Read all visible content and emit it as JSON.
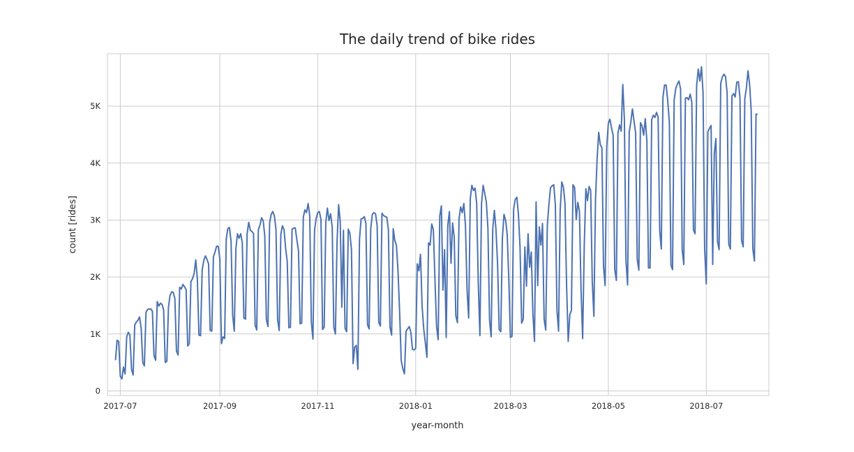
{
  "chart_data": {
    "type": "line",
    "title": "The daily trend of bike rides",
    "xlabel": "year-month",
    "ylabel": "count [rides]",
    "x_tick_labels": [
      "2017-07",
      "2017-09",
      "2017-11",
      "2018-01",
      "2018-03",
      "2018-05",
      "2018-07"
    ],
    "x_tick_dates": [
      "2017-07-01",
      "2017-09-01",
      "2017-11-01",
      "2018-01-01",
      "2018-03-01",
      "2018-05-01",
      "2018-07-01"
    ],
    "y_tick_labels": [
      "0",
      "1K",
      "2K",
      "3K",
      "4K",
      "5K"
    ],
    "y_tick_values": [
      0,
      1000,
      2000,
      3000,
      4000,
      5000
    ],
    "xlim": [
      "2017-06-23",
      "2018-08-09"
    ],
    "ylim": [
      -80,
      5920
    ],
    "grid": true,
    "color": "#4c72b0",
    "series": [
      {
        "start_date": "2017-06-28",
        "values": [
          540,
          890,
          870,
          260,
          210,
          420,
          300,
          950,
          1030,
          980,
          380,
          280,
          1160,
          1210,
          1240,
          1300,
          1100,
          500,
          440,
          1380,
          1430,
          1440,
          1440,
          1400,
          620,
          540,
          1570,
          1490,
          1540,
          1520,
          1420,
          500,
          520,
          1470,
          1680,
          1740,
          1730,
          1620,
          700,
          630,
          1820,
          1790,
          1870,
          1830,
          1780,
          790,
          830,
          1920,
          1970,
          2060,
          2300,
          1970,
          980,
          970,
          2120,
          2290,
          2370,
          2310,
          2230,
          1060,
          1050,
          2350,
          2440,
          2540,
          2540,
          2320,
          830,
          950,
          920,
          2670,
          2850,
          2870,
          2630,
          1330,
          1050,
          2500,
          2760,
          2680,
          2760,
          2600,
          1280,
          1260,
          2760,
          2960,
          2820,
          2800,
          2760,
          1150,
          1070,
          2830,
          2910,
          3040,
          2990,
          2720,
          1250,
          1130,
          2950,
          3100,
          3150,
          3070,
          2830,
          1250,
          1060,
          2750,
          2900,
          2830,
          2500,
          2270,
          1110,
          1120,
          2840,
          2860,
          2860,
          2650,
          2460,
          1180,
          1190,
          3050,
          3180,
          3130,
          3290,
          3080,
          1210,
          910,
          2820,
          3030,
          3130,
          3150,
          3010,
          1080,
          1120,
          2960,
          3210,
          2990,
          3110,
          2880,
          1120,
          1000,
          2610,
          3270,
          2970,
          1470,
          2820,
          1100,
          1040,
          2840,
          2770,
          2480,
          480,
          770,
          800,
          380,
          2660,
          3020,
          3030,
          3060,
          2940,
          1160,
          1090,
          2850,
          3100,
          3130,
          3110,
          2900,
          1200,
          1140,
          3120,
          3080,
          3060,
          3050,
          2830,
          1120,
          980,
          2850,
          2640,
          2560,
          2100,
          1380,
          530,
          390,
          300,
          1050,
          1090,
          1130,
          1030,
          730,
          720,
          750,
          2230,
          2110,
          2400,
          1490,
          1090,
          850,
          590,
          2600,
          2560,
          2930,
          2830,
          1960,
          1140,
          900,
          3070,
          3250,
          1770,
          2480,
          940,
          2910,
          3150,
          2240,
          2950,
          2700,
          1320,
          1200,
          3020,
          3230,
          3130,
          3290,
          2900,
          1770,
          1280,
          3370,
          3610,
          3520,
          3560,
          3290,
          1880,
          970,
          3280,
          3610,
          3470,
          3320,
          2850,
          1250,
          950,
          2840,
          3170,
          2840,
          2240,
          1080,
          1040,
          2680,
          3100,
          3000,
          2750,
          1960,
          940,
          960,
          3190,
          3360,
          3400,
          3100,
          2520,
          1190,
          1260,
          2530,
          1840,
          2760,
          2170,
          2440,
          1360,
          870,
          3320,
          1850,
          2880,
          2560,
          2940,
          1260,
          1070,
          2910,
          3280,
          3570,
          3600,
          3620,
          3270,
          1420,
          1050,
          3170,
          3670,
          3580,
          3300,
          1840,
          870,
          1340,
          1410,
          3620,
          3570,
          3010,
          3310,
          3150,
          1770,
          920,
          2550,
          3550,
          3340,
          3590,
          3520,
          1910,
          1310,
          3350,
          4070,
          4540,
          4320,
          4270,
          2190,
          1850,
          4280,
          4700,
          4770,
          4610,
          4490,
          2130,
          1940,
          4530,
          4670,
          4560,
          5380,
          4770,
          2280,
          1860,
          4540,
          4720,
          4950,
          4740,
          4530,
          2310,
          2120,
          4710,
          4650,
          4490,
          4780,
          4390,
          2160,
          2160,
          4760,
          4840,
          4800,
          4890,
          4810,
          2810,
          2490,
          5150,
          5370,
          5370,
          5090,
          4720,
          2210,
          2130,
          5110,
          5310,
          5390,
          5440,
          5300,
          2480,
          2220,
          5140,
          5150,
          5110,
          5210,
          5070,
          2830,
          2760,
          5360,
          5650,
          5440,
          5690,
          5240,
          2490,
          1880,
          4550,
          4610,
          4660,
          2220,
          4170,
          4430,
          2620,
          2480,
          5400,
          5510,
          5560,
          5520,
          5230,
          2580,
          2490,
          5180,
          5220,
          5160,
          5420,
          5430,
          5150,
          2640,
          2530,
          5130,
          5320,
          5620,
          5380,
          4910,
          2500,
          2280,
          4860,
          4860
        ]
      }
    ]
  }
}
